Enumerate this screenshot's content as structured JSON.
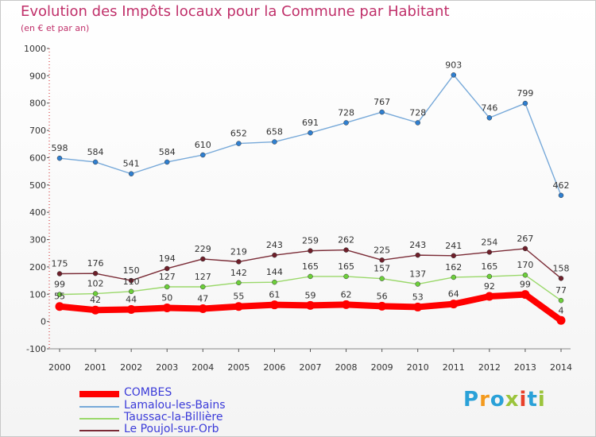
{
  "header": {
    "title": "Evolution des Impôts locaux pour la Commune par Habitant",
    "subtitle": "(en € et par an)"
  },
  "logo": {
    "text": "Proxiti"
  },
  "chart_data": {
    "type": "line",
    "title": "Evolution des Impôts locaux pour la Commune par Habitant",
    "subtitle": "(en € et par an)",
    "xlabel": "",
    "ylabel": "",
    "ylim": [
      -100,
      1000
    ],
    "yticks": [
      -100,
      0,
      100,
      200,
      300,
      400,
      500,
      600,
      700,
      800,
      900,
      1000
    ],
    "grid": false,
    "legend_position": "bottom-left",
    "x": [
      2000,
      2001,
      2002,
      2003,
      2004,
      2005,
      2006,
      2007,
      2008,
      2009,
      2010,
      2011,
      2012,
      2013,
      2014
    ],
    "series": [
      {
        "name": "COMBES",
        "color": "#ff0000",
        "marker_color": "#ff0000",
        "values": [
          55,
          42,
          44,
          50,
          47,
          55,
          61,
          59,
          62,
          56,
          53,
          64,
          92,
          99,
          4
        ]
      },
      {
        "name": "Lamalou-les-Bains",
        "color": "#77a9d9",
        "marker_color": "#2f7fd0",
        "values": [
          598,
          584,
          541,
          584,
          610,
          652,
          658,
          691,
          728,
          767,
          728,
          903,
          746,
          799,
          462
        ]
      },
      {
        "name": "Taussac-la-Billière",
        "color": "#9ad86a",
        "marker_color": "#6ccf3a",
        "values": [
          99,
          102,
          110,
          127,
          127,
          142,
          144,
          165,
          165,
          157,
          137,
          162,
          165,
          170,
          77
        ]
      },
      {
        "name": "Le Poujol-sur-Orb",
        "color": "#7a2b36",
        "marker_color": "#6e1f2a",
        "values": [
          175,
          176,
          150,
          194,
          229,
          219,
          243,
          259,
          262,
          225,
          243,
          241,
          254,
          267,
          158
        ]
      }
    ]
  }
}
